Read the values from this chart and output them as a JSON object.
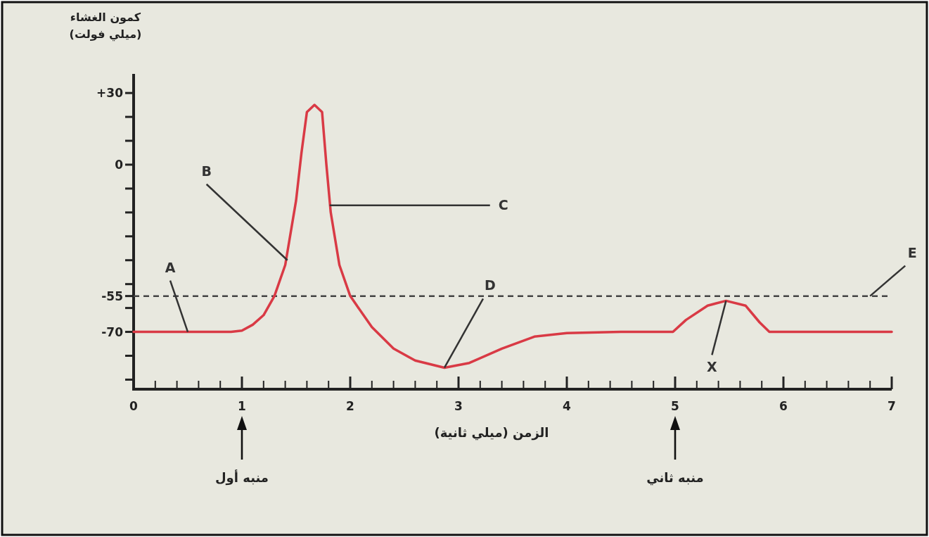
{
  "chart_data": {
    "type": "line",
    "xlabel": "الزمن (ميلي ثانية)",
    "ylabel": "كمون الغشاء\n(ميلي فولت)",
    "xlim": [
      0,
      7
    ],
    "ylim": [
      -94,
      38
    ],
    "xticks": [
      0,
      {
        "value": 0.2,
        "label": null
      },
      {
        "value": 0.4,
        "label": null
      },
      {
        "value": 0.6,
        "label": null
      },
      {
        "value": 0.8,
        "label": null
      },
      1,
      {
        "value": 1.2,
        "label": null
      },
      {
        "value": 1.4,
        "label": null
      },
      {
        "value": 1.6,
        "label": null
      },
      {
        "value": 1.8,
        "label": null
      },
      2,
      {
        "value": 2.2,
        "label": null
      },
      {
        "value": 2.4,
        "label": null
      },
      {
        "value": 2.6,
        "label": null
      },
      {
        "value": 2.8,
        "label": null
      },
      3,
      {
        "value": 3.2,
        "label": null
      },
      {
        "value": 3.4,
        "label": null
      },
      {
        "value": 3.6,
        "label": null
      },
      {
        "value": 3.8,
        "label": null
      },
      4,
      {
        "value": 4.2,
        "label": null
      },
      {
        "value": 4.4,
        "label": null
      },
      {
        "value": 4.6,
        "label": null
      },
      {
        "value": 4.8,
        "label": null
      },
      5,
      {
        "value": 5.2,
        "label": null
      },
      {
        "value": 5.4,
        "label": null
      },
      {
        "value": 5.6,
        "label": null
      },
      {
        "value": 5.8,
        "label": null
      },
      6,
      {
        "value": 6.2,
        "label": null
      },
      {
        "value": 6.4,
        "label": null
      },
      {
        "value": 6.6,
        "label": null
      },
      {
        "value": 6.8,
        "label": null
      },
      7
    ],
    "yticks": [
      {
        "value": 30,
        "label": "+30"
      },
      {
        "value": 20,
        "label": null
      },
      {
        "value": 10,
        "label": null
      },
      0,
      {
        "value": -10,
        "label": null
      },
      {
        "value": -20,
        "label": null
      },
      {
        "value": -30,
        "label": null
      },
      {
        "value": -40,
        "label": null
      },
      {
        "value": -50,
        "label": null
      },
      -55,
      {
        "value": -60,
        "label": null
      },
      -70,
      {
        "value": -80,
        "label": null
      },
      {
        "value": -90,
        "label": null
      }
    ],
    "series": [
      {
        "color": "#d93a45",
        "x": [
          0,
          0.5,
          0.9,
          1.0,
          1.1,
          1.2,
          1.3,
          1.4,
          1.5,
          1.55,
          1.6,
          1.67,
          1.74,
          1.78,
          1.82,
          1.9,
          2.0,
          2.2,
          2.4,
          2.6,
          2.87,
          3.1,
          3.4,
          3.7,
          4.0,
          4.5,
          4.98,
          5.1,
          5.3,
          5.47,
          5.65,
          5.78,
          5.87,
          6.5,
          7.0
        ],
        "values": [
          -70,
          -70,
          -70,
          -69.5,
          -67,
          -63,
          -55,
          -42,
          -15,
          5,
          22,
          25,
          22,
          0,
          -20,
          -42,
          -55,
          -68,
          -77,
          -82,
          -85,
          -83,
          -77,
          -72,
          -70.5,
          -70,
          -70,
          -65,
          -59,
          -57,
          -59,
          -66,
          -70,
          -70,
          -70
        ]
      }
    ],
    "ref_lines": [
      {
        "axis": "y",
        "value": -55,
        "color": "#444444",
        "line_style": "dashed"
      }
    ],
    "annotations": [
      {
        "text": "A",
        "x": 0.5,
        "y": -70
      },
      {
        "text": "B",
        "x": 1.42,
        "y": -40
      },
      {
        "text": "C",
        "x": 1.81,
        "y": -17
      },
      {
        "text": "D",
        "x": 2.87,
        "y": -85
      },
      {
        "text": "X",
        "x": 5.47,
        "y": -57
      },
      {
        "text": "E",
        "x": 6.8,
        "y": -55
      },
      "منبه أول",
      "منبه ثاني"
    ]
  }
}
